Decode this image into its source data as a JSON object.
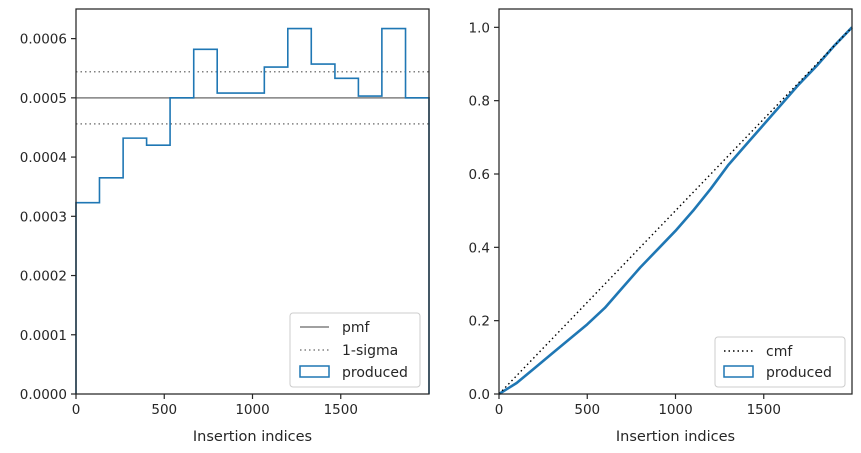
{
  "chart_data": [
    {
      "type": "histogram",
      "xlabel": "Insertion indices",
      "ylabel": "",
      "xlim": [
        0,
        2000
      ],
      "ylim": [
        0,
        0.00065
      ],
      "xticks": [
        0,
        500,
        1000,
        1500
      ],
      "yticks": [
        0,
        0.0001,
        0.0002,
        0.0003,
        0.0004,
        0.0005,
        0.0006
      ],
      "xtick_labels": [
        "0",
        "500",
        "1000",
        "1500"
      ],
      "ytick_labels": [
        "0.0000",
        "0.0001",
        "0.0002",
        "0.0003",
        "0.0004",
        "0.0005",
        "0.0006"
      ],
      "legend_position": "lower right",
      "series": [
        {
          "name": "pmf",
          "kind": "hline",
          "y": 0.0005,
          "style": "solid",
          "color": "#808080"
        },
        {
          "name": "1-sigma",
          "kind": "hlines",
          "y": [
            0.000544,
            0.000456
          ],
          "style": "dotted",
          "color": "#808080"
        },
        {
          "name": "produced",
          "kind": "step-histogram",
          "color": "#1f77b4",
          "bin_edges": [
            0,
            133,
            267,
            400,
            533,
            667,
            800,
            933,
            1067,
            1200,
            1333,
            1467,
            1600,
            1733,
            1867,
            2000
          ],
          "values": [
            0.000323,
            0.000365,
            0.000432,
            0.00042,
            0.0005,
            0.000582,
            0.000508,
            0.000508,
            0.000552,
            0.000617,
            0.000557,
            0.000533,
            0.000503,
            0.000617,
            0.0005
          ]
        }
      ]
    },
    {
      "type": "line",
      "xlabel": "Insertion indices",
      "ylabel": "",
      "xlim": [
        0,
        2000
      ],
      "ylim": [
        0,
        1.05
      ],
      "xticks": [
        0,
        500,
        1000,
        1500
      ],
      "yticks": [
        0,
        0.2,
        0.4,
        0.6,
        0.8,
        1.0
      ],
      "xtick_labels": [
        "0",
        "500",
        "1000",
        "1500"
      ],
      "ytick_labels": [
        "0.0",
        "0.2",
        "0.4",
        "0.6",
        "0.8",
        "1.0"
      ],
      "legend_position": "lower right",
      "series": [
        {
          "name": "cmf",
          "style": "dotted",
          "color": "#000000",
          "x": [
            0,
            2000
          ],
          "y": [
            0,
            1
          ]
        },
        {
          "name": "produced",
          "style": "solid",
          "color": "#1f77b4",
          "x": [
            0,
            100,
            200,
            300,
            400,
            500,
            600,
            700,
            800,
            900,
            1000,
            1100,
            1200,
            1300,
            1400,
            1500,
            1600,
            1700,
            1800,
            1900,
            2000
          ],
          "y": [
            0,
            0.03,
            0.07,
            0.11,
            0.15,
            0.19,
            0.235,
            0.29,
            0.345,
            0.395,
            0.445,
            0.5,
            0.56,
            0.625,
            0.68,
            0.735,
            0.79,
            0.845,
            0.895,
            0.95,
            1.0
          ]
        }
      ]
    }
  ]
}
